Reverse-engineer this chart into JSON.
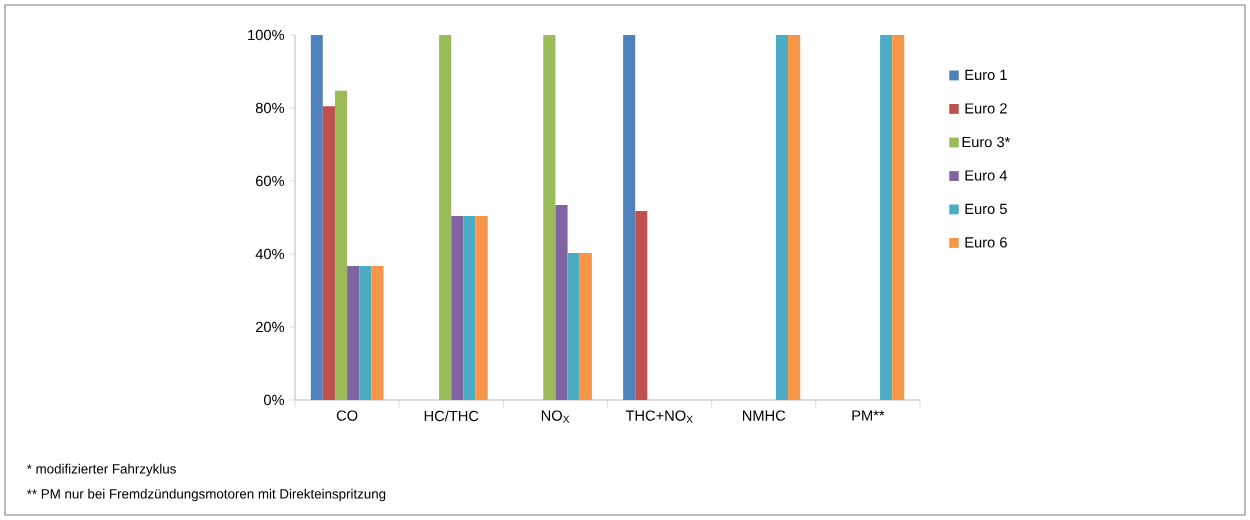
{
  "chart_data": {
    "type": "bar",
    "categories": [
      "CO",
      "HC/THC",
      "NO$_{X}$",
      "THC+NO$_{X}$",
      "NMHC",
      "PM**"
    ],
    "series": [
      {
        "name": "Euro 1",
        "color": "#4f81bd",
        "values": [
          100,
          null,
          null,
          100,
          null,
          null
        ]
      },
      {
        "name": "Euro 2",
        "color": "#c0504d",
        "values": [
          80.5,
          null,
          null,
          51.8,
          null,
          null
        ]
      },
      {
        "name": "Euro 3*",
        "color": "#9bbb59",
        "values": [
          84.7,
          100,
          100,
          null,
          null,
          null
        ]
      },
      {
        "name": "Euro 4",
        "color": "#8064a2",
        "values": [
          36.7,
          50.4,
          53.4,
          null,
          null,
          null
        ]
      },
      {
        "name": "Euro 5",
        "color": "#4bacc6",
        "values": [
          36.7,
          50.4,
          40.3,
          null,
          100,
          100
        ]
      },
      {
        "name": "Euro 6",
        "color": "#f79646",
        "values": [
          36.7,
          50.4,
          40.3,
          null,
          100,
          100
        ]
      }
    ],
    "ylim": [
      0,
      100
    ],
    "yticks": [
      {
        "value": 0,
        "label": "0%"
      },
      {
        "value": 20,
        "label": "20%"
      },
      {
        "value": 40,
        "label": "40%"
      },
      {
        "value": 60,
        "label": "60%"
      },
      {
        "value": 80,
        "label": "80%"
      },
      {
        "value": 100,
        "label": "100%"
      }
    ],
    "grid": false,
    "legend": "right",
    "annotations": [
      "*  modifizierter Fahrzyklus",
      "** PM nur bei Fremdzündungsmotoren mit Direkteinspritzung"
    ]
  }
}
